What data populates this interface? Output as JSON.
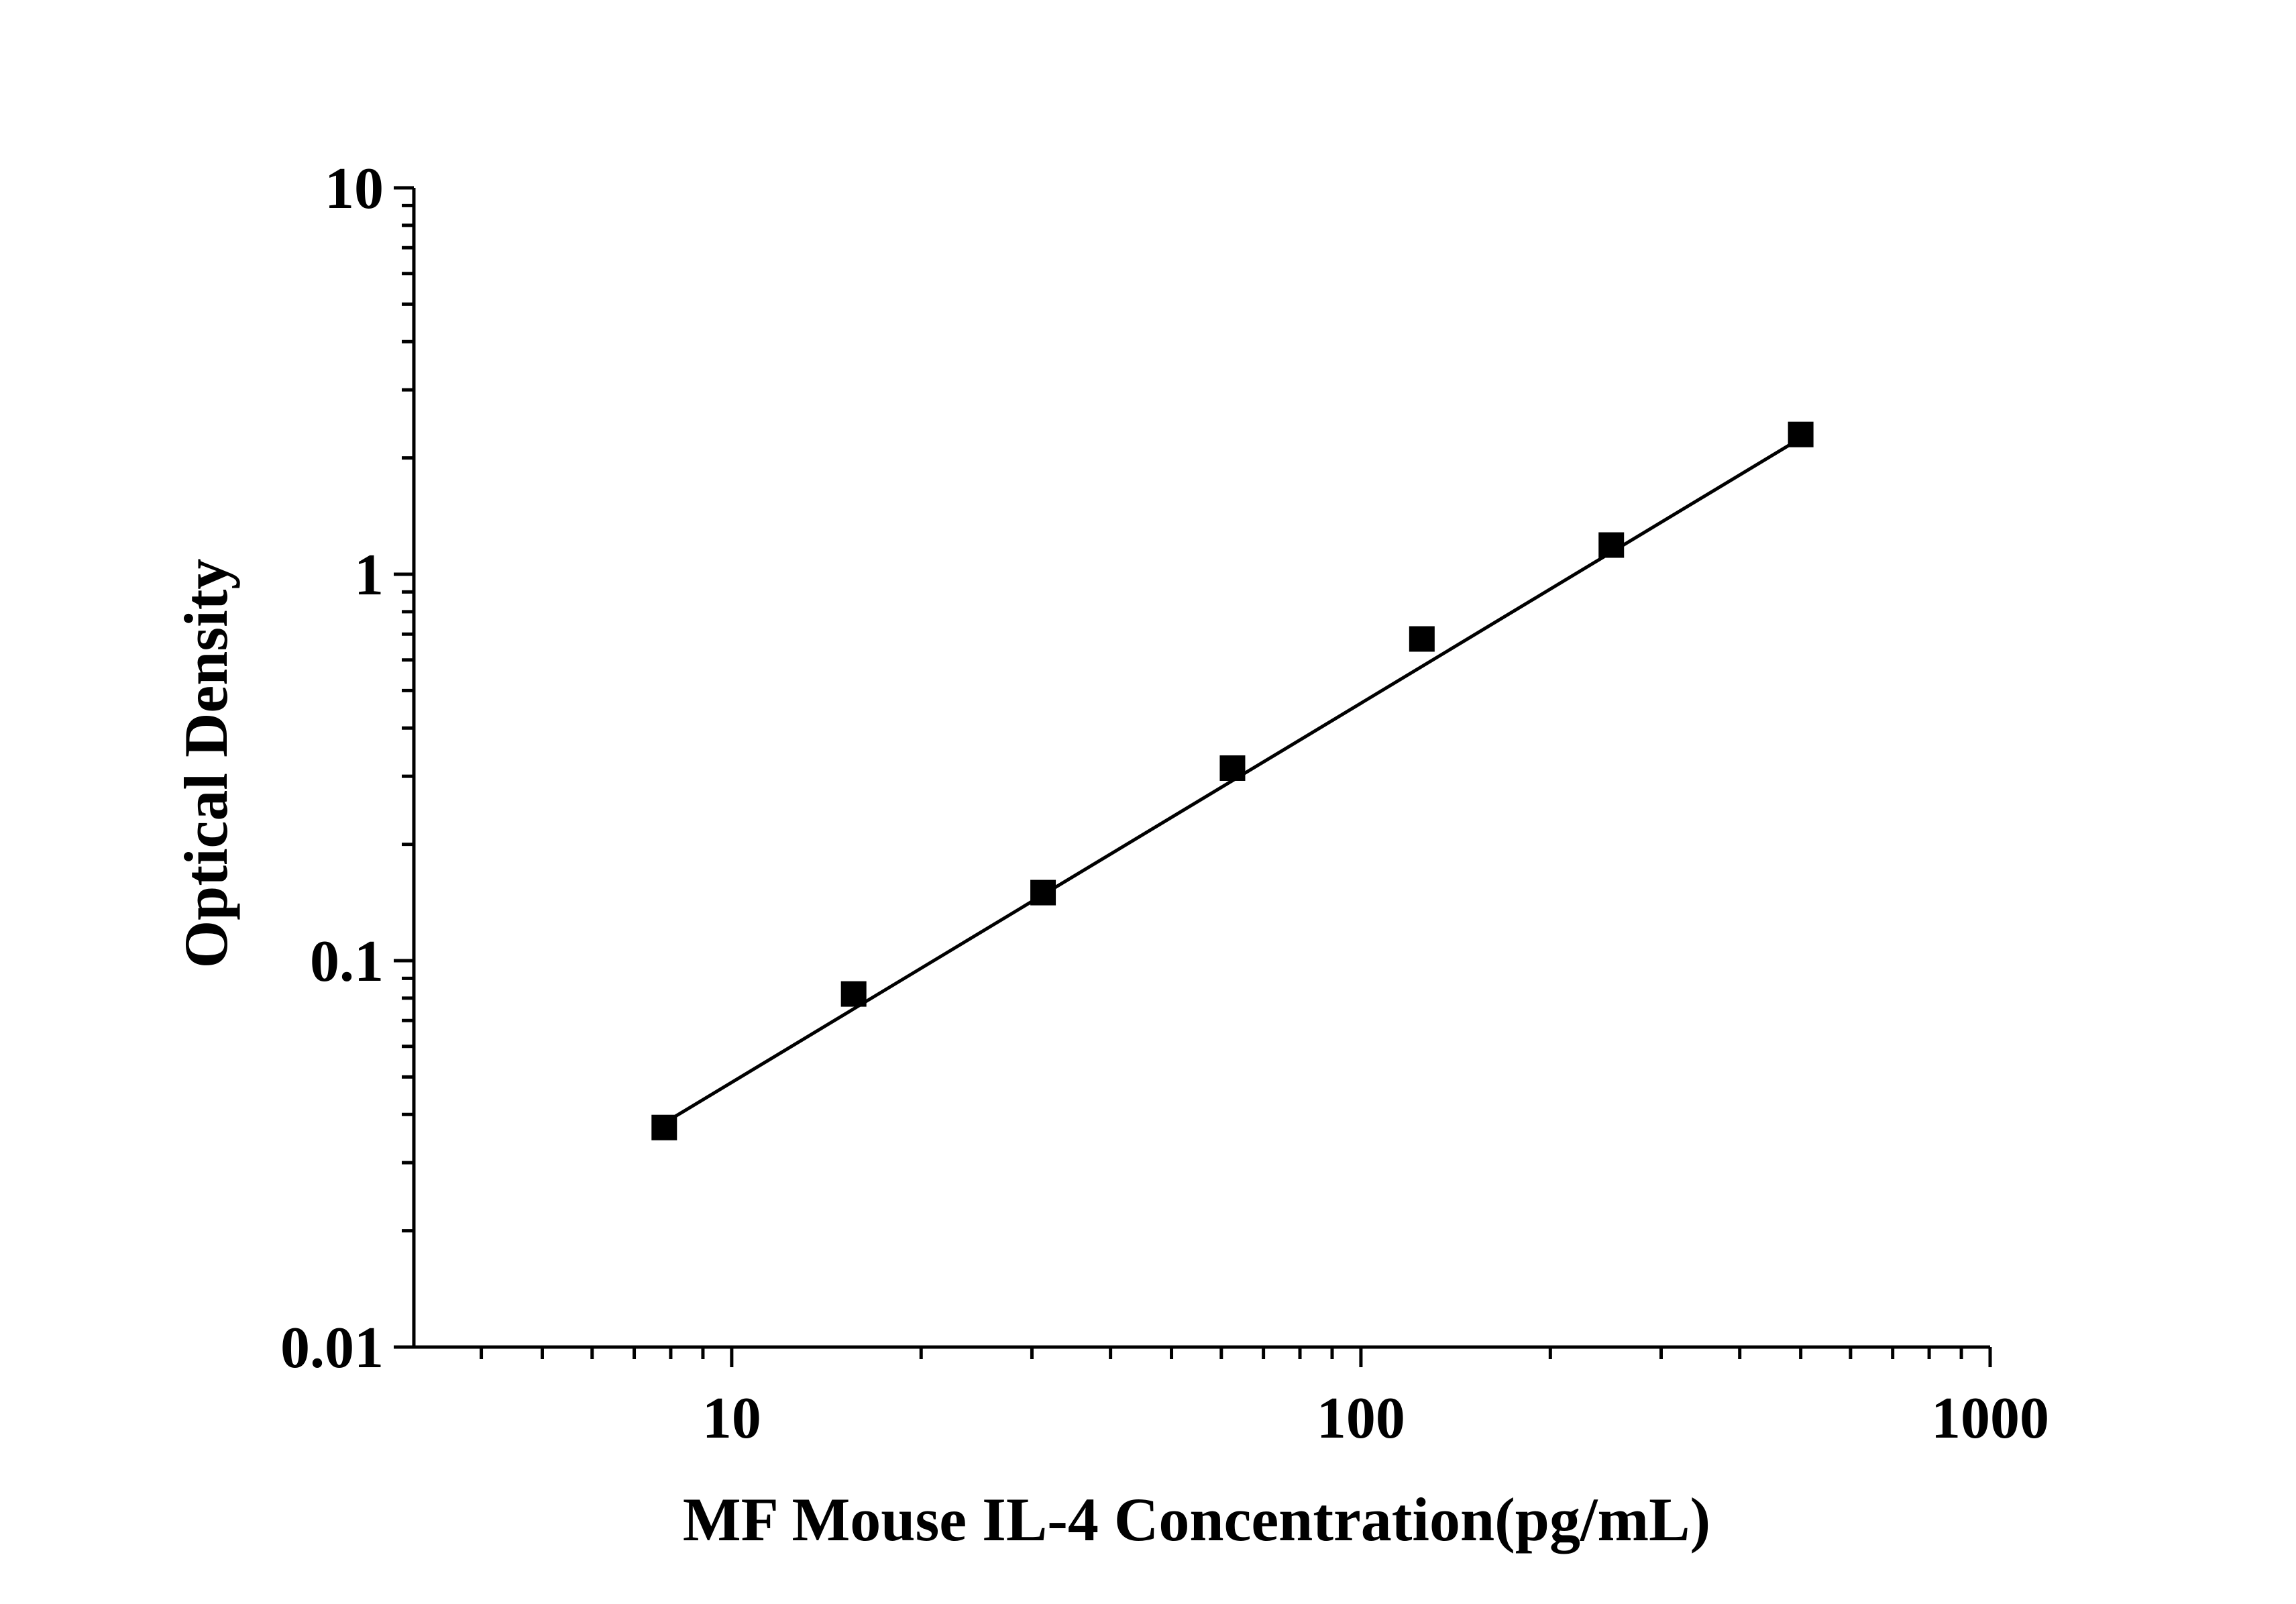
{
  "chart_data": {
    "type": "scatter",
    "title": "",
    "xlabel": "MF Mouse IL-4 Concentration(pg/mL)",
    "ylabel": "Optical Density",
    "xscale": "log",
    "yscale": "log",
    "xlim": [
      3.125,
      1000
    ],
    "ylim": [
      0.01,
      10
    ],
    "x_ticks": [
      10,
      100,
      1000
    ],
    "x_tick_labels": [
      "10",
      "100",
      "1000"
    ],
    "y_ticks": [
      0.01,
      0.1,
      1,
      10
    ],
    "y_tick_labels": [
      "0.01",
      "0.1",
      "1",
      "10"
    ],
    "grid": false,
    "legend": "none",
    "series": [
      {
        "marker": "square",
        "color": "#000000",
        "x": [
          7.8125,
          15.625,
          31.25,
          62.5,
          125,
          250,
          500
        ],
        "y": [
          0.037,
          0.082,
          0.15,
          0.315,
          0.68,
          1.19,
          2.3
        ]
      }
    ],
    "fit_line": {
      "type": "log-log linear",
      "color": "#000000",
      "x_range": [
        7.8125,
        500
      ],
      "y_range": [
        0.038,
        2.25
      ]
    }
  }
}
